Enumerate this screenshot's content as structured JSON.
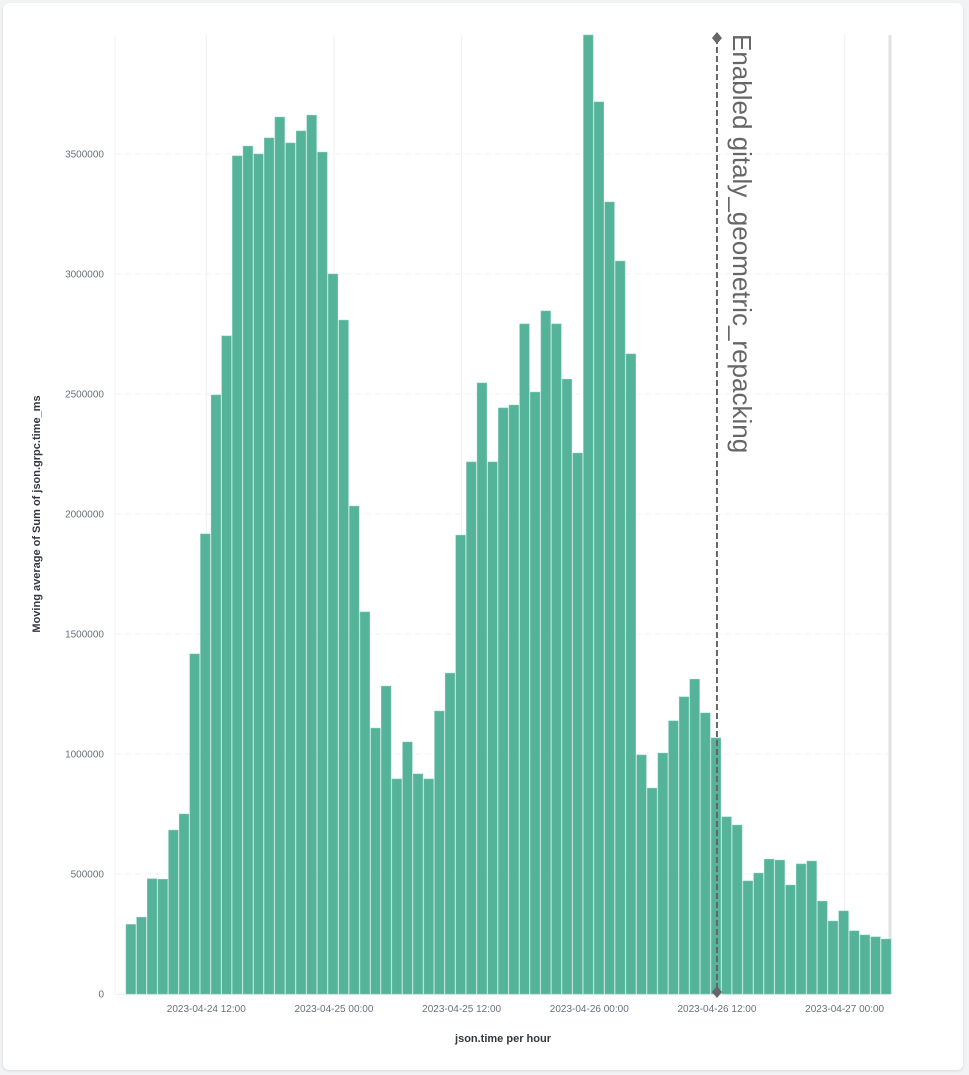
{
  "chart_data": {
    "type": "bar",
    "title": "",
    "xlabel": "json.time per hour",
    "ylabel": "Moving average of Sum of json.grpc.time_ms",
    "ylim": [
      0,
      4000000
    ],
    "y_ticks": [
      0,
      500000,
      1000000,
      1500000,
      2000000,
      2500000,
      3000000,
      3500000
    ],
    "y_tick_labels": [
      "0",
      "500000",
      "1000000",
      "1500000",
      "2000000",
      "2500000",
      "3000000",
      "3500000"
    ],
    "x_tick_labels": [
      "2023-04-24 12:00",
      "2023-04-25 00:00",
      "2023-04-25 12:00",
      "2023-04-26 00:00",
      "2023-04-26 12:00",
      "2023-04-27 00:00"
    ],
    "x_tick_bar_index": [
      8,
      20,
      32,
      44,
      56,
      68
    ],
    "grid": true,
    "bar_color": "#54b399",
    "start_hour": "2023-04-24 03:00",
    "interval": "1h",
    "values": [
      290000,
      320000,
      480000,
      478000,
      683000,
      750000,
      1417000,
      1917000,
      2496000,
      2742000,
      3492000,
      3533000,
      3500000,
      3567000,
      3654000,
      3546000,
      3596000,
      3662000,
      3508000,
      3000000,
      2808000,
      2033000,
      1592000,
      1108000,
      1283000,
      896000,
      1050000,
      917000,
      896000,
      1179000,
      1337000,
      1912000,
      2217000,
      2546000,
      2217000,
      2442000,
      2454000,
      2792000,
      2508000,
      2846000,
      2792000,
      2562000,
      2254000,
      3996000,
      3717000,
      3300000,
      3054000,
      2667000,
      996000,
      858000,
      1004000,
      1138000,
      1238000,
      1312000,
      1171000,
      1067000,
      738000,
      704000,
      471000,
      504000,
      562000,
      558000,
      454000,
      542000,
      554000,
      387000,
      304000,
      346000,
      263000,
      246000,
      238000,
      229000
    ],
    "annotations": [
      {
        "label": "Enabled gitaly_geometric_repacking",
        "bar_index": 56,
        "style": "dashed",
        "color": "#666666"
      }
    ]
  }
}
